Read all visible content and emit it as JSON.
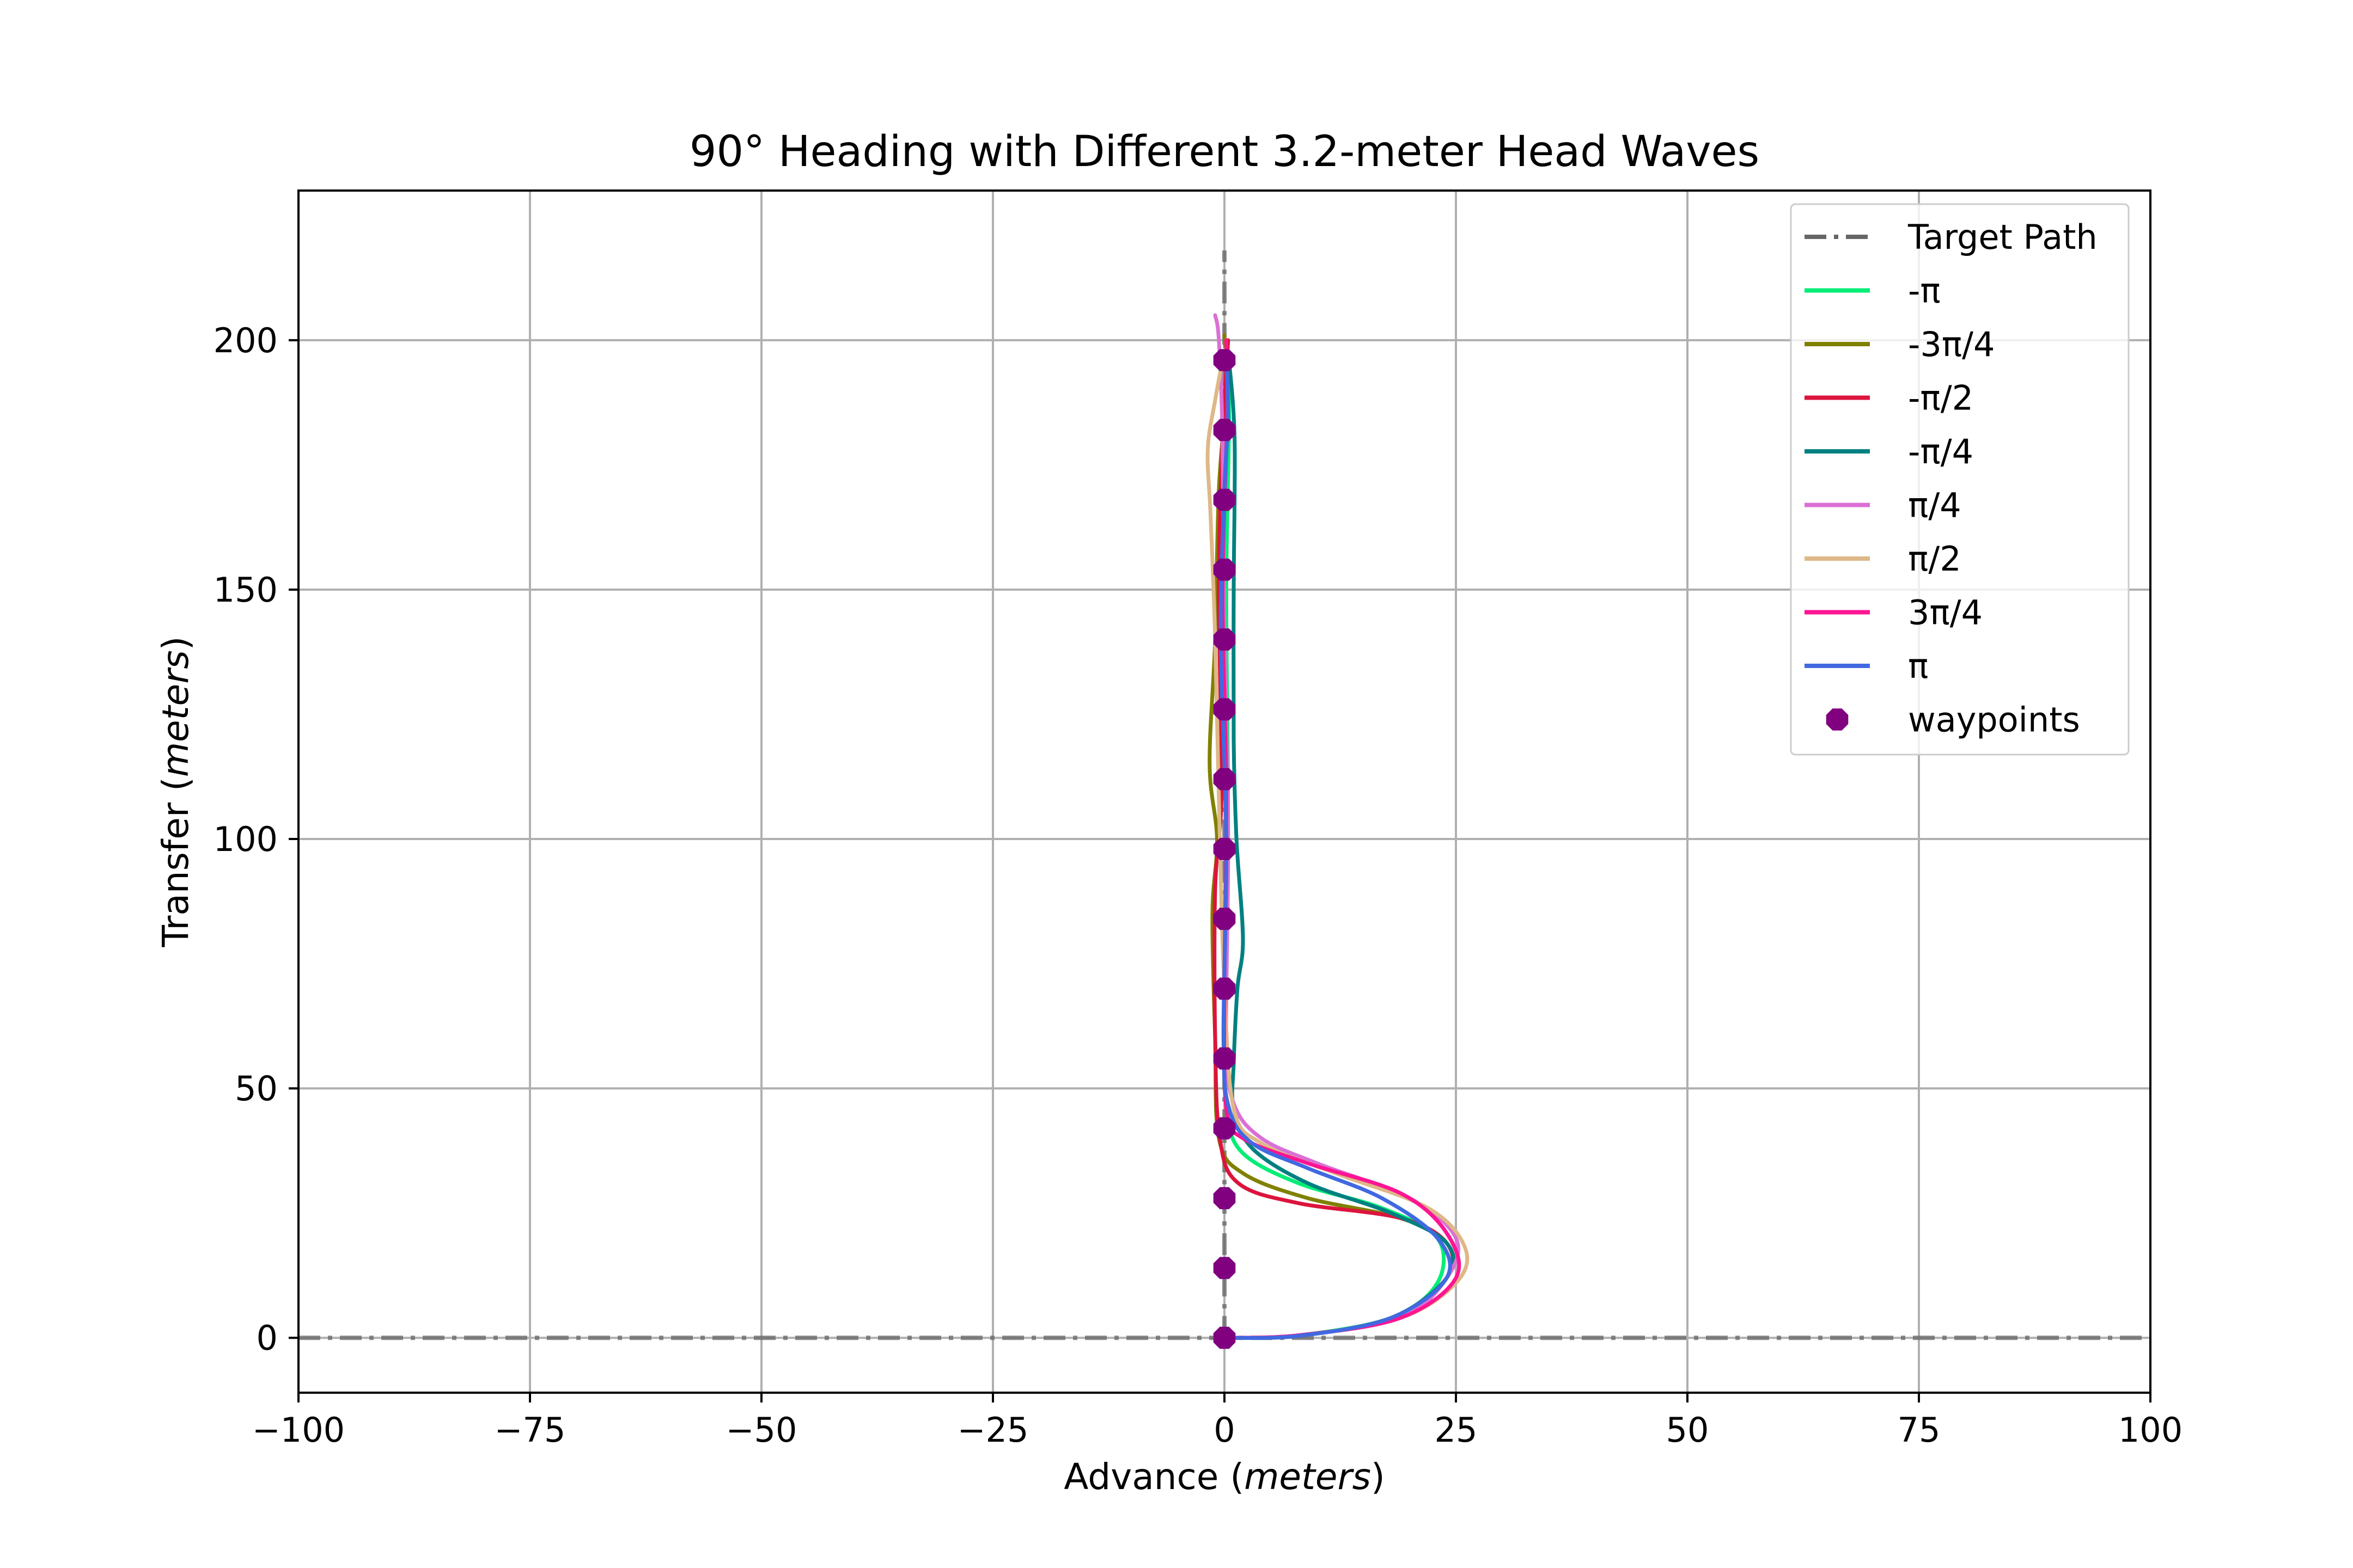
{
  "chart_data": {
    "type": "line",
    "title": "90° Heading with Different 3.2-meter Head Waves",
    "xlabel": {
      "main": "Advance",
      "unit": "meters"
    },
    "ylabel": {
      "main": "Transfer",
      "unit": "meters"
    },
    "xlim": [
      -100,
      100
    ],
    "ylim": [
      -11,
      230
    ],
    "xticks": [
      -100,
      -75,
      -50,
      -25,
      0,
      25,
      50,
      75,
      100
    ],
    "xtick_labels": [
      "−100",
      "−75",
      "−50",
      "−25",
      "0",
      "25",
      "50",
      "75",
      "100"
    ],
    "yticks": [
      0,
      50,
      100,
      150,
      200
    ],
    "ytick_labels": [
      "0",
      "50",
      "100",
      "150",
      "200"
    ],
    "grid": true,
    "legend_placement": "top-right",
    "target_path": {
      "name": "Target Path",
      "color": "#666666",
      "style": "dash-dot",
      "segments": [
        {
          "x": [
            0,
            0
          ],
          "y": [
            0,
            218
          ]
        },
        {
          "x": [
            -100,
            100
          ],
          "y": [
            0,
            0
          ]
        }
      ]
    },
    "series": [
      {
        "name": "-π",
        "color": "#00ee76",
        "points": [
          [
            0,
            0
          ],
          [
            8,
            0.5
          ],
          [
            18,
            4
          ],
          [
            23,
            11
          ],
          [
            23,
            20
          ],
          [
            17,
            26
          ],
          [
            8,
            31
          ],
          [
            2,
            37
          ],
          [
            0.3,
            45
          ],
          [
            0,
            60
          ],
          [
            0.4,
            100
          ],
          [
            0.2,
            150
          ],
          [
            0.5,
            185
          ],
          [
            0.2,
            198
          ]
        ]
      },
      {
        "name": "-3π/4",
        "color": "#808000",
        "points": [
          [
            0,
            0
          ],
          [
            8,
            0.4
          ],
          [
            18,
            4
          ],
          [
            24,
            12
          ],
          [
            24,
            19
          ],
          [
            19,
            24
          ],
          [
            9,
            28
          ],
          [
            2,
            33
          ],
          [
            -0.6,
            40
          ],
          [
            -1,
            60
          ],
          [
            -1.3,
            85
          ],
          [
            -0.8,
            100
          ],
          [
            -1.6,
            115
          ],
          [
            -1,
            140
          ],
          [
            -0.6,
            170
          ],
          [
            0.2,
            190
          ],
          [
            0,
            201
          ]
        ]
      },
      {
        "name": "-π/2",
        "color": "#dc143c",
        "points": [
          [
            0,
            0
          ],
          [
            8,
            0.4
          ],
          [
            18,
            4
          ],
          [
            24,
            12
          ],
          [
            24,
            19
          ],
          [
            19,
            24
          ],
          [
            8,
            27
          ],
          [
            1.5,
            31
          ],
          [
            -0.5,
            40
          ],
          [
            -1,
            60
          ],
          [
            -1,
            90
          ],
          [
            -0.3,
            110
          ],
          [
            -0.6,
            150
          ],
          [
            -0.2,
            180
          ],
          [
            0.4,
            200
          ]
        ]
      },
      {
        "name": "-π/4",
        "color": "#008080",
        "points": [
          [
            0,
            0
          ],
          [
            8,
            0.4
          ],
          [
            18,
            4
          ],
          [
            24,
            12
          ],
          [
            24,
            19
          ],
          [
            18,
            25
          ],
          [
            9,
            31
          ],
          [
            3,
            38
          ],
          [
            1,
            46
          ],
          [
            1,
            55
          ],
          [
            1.4,
            70
          ],
          [
            2,
            80
          ],
          [
            1.3,
            100
          ],
          [
            1,
            120
          ],
          [
            1,
            150
          ],
          [
            1.1,
            180
          ],
          [
            0.5,
            196
          ]
        ]
      },
      {
        "name": "π/4",
        "color": "#da70d6",
        "points": [
          [
            0,
            0
          ],
          [
            8,
            0.5
          ],
          [
            19,
            4
          ],
          [
            24,
            12
          ],
          [
            25,
            20
          ],
          [
            20,
            28
          ],
          [
            10,
            35
          ],
          [
            4,
            40
          ],
          [
            1,
            47
          ],
          [
            0.2,
            60
          ],
          [
            0.4,
            100
          ],
          [
            0,
            140
          ],
          [
            -0.2,
            180
          ],
          [
            -0.6,
            200
          ],
          [
            -1,
            205
          ]
        ]
      },
      {
        "name": "π/2",
        "color": "#deb887",
        "points": [
          [
            0,
            0
          ],
          [
            8,
            0.5
          ],
          [
            19,
            4
          ],
          [
            25,
            11
          ],
          [
            26,
            18
          ],
          [
            22,
            26
          ],
          [
            12,
            33
          ],
          [
            4,
            39
          ],
          [
            1,
            46
          ],
          [
            0,
            70
          ],
          [
            -0.5,
            100
          ],
          [
            -1,
            140
          ],
          [
            -1.5,
            165
          ],
          [
            -1.8,
            178
          ],
          [
            -1,
            188
          ],
          [
            0,
            198
          ]
        ]
      },
      {
        "name": "3π/4",
        "color": "#ff1493",
        "points": [
          [
            0,
            0
          ],
          [
            8,
            0.5
          ],
          [
            19,
            4
          ],
          [
            25,
            12
          ],
          [
            24,
            21
          ],
          [
            19,
            29
          ],
          [
            9,
            35
          ],
          [
            2,
            40
          ],
          [
            0.2,
            46
          ],
          [
            0,
            70
          ],
          [
            0.2,
            110
          ],
          [
            -0.2,
            150
          ],
          [
            0.3,
            185
          ],
          [
            0.2,
            200
          ]
        ]
      },
      {
        "name": "π",
        "color": "#4169e1",
        "points": [
          [
            0,
            0
          ],
          [
            8,
            0.4
          ],
          [
            18,
            4
          ],
          [
            24,
            12
          ],
          [
            23,
            20
          ],
          [
            17,
            28
          ],
          [
            9,
            34
          ],
          [
            3,
            39
          ],
          [
            0.5,
            46
          ],
          [
            -0.1,
            60
          ],
          [
            0.2,
            100
          ],
          [
            -0.4,
            140
          ],
          [
            0,
            170
          ],
          [
            0.4,
            185
          ],
          [
            0.2,
            196
          ]
        ]
      }
    ],
    "waypoints": {
      "name": "waypoints",
      "color": "#800080",
      "points": [
        [
          0,
          0
        ],
        [
          0,
          14
        ],
        [
          0,
          28
        ],
        [
          0,
          42
        ],
        [
          0,
          56
        ],
        [
          0,
          70
        ],
        [
          0,
          84
        ],
        [
          0,
          98
        ],
        [
          0,
          112
        ],
        [
          0,
          126
        ],
        [
          0,
          140
        ],
        [
          0,
          154
        ],
        [
          0,
          168
        ],
        [
          0,
          182
        ],
        [
          0,
          196
        ]
      ]
    }
  }
}
